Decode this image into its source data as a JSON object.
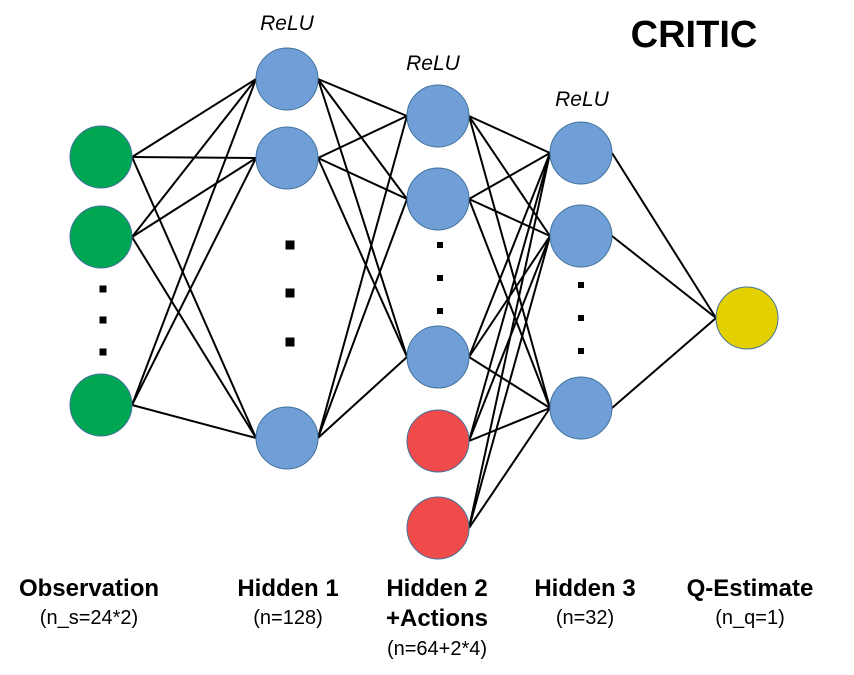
{
  "title": "CRITIC",
  "colors": {
    "observation": "#00a651",
    "hidden": "#6f9fd6",
    "action": "#ef4b4b",
    "output": "#e2d000",
    "edge": "#000000"
  },
  "activation_label": "ReLU",
  "layers": [
    {
      "id": "observation",
      "name": "Observation",
      "size": "(n_s=24*2)"
    },
    {
      "id": "hidden1",
      "name": "Hidden 1",
      "size": "(n=128)",
      "activation": "ReLU"
    },
    {
      "id": "hidden2",
      "name": "Hidden 2",
      "name2": "+Actions",
      "size": "(n=64+2*4)",
      "activation": "ReLU"
    },
    {
      "id": "hidden3",
      "name": "Hidden 3",
      "size": "(n=32)",
      "activation": "ReLU"
    },
    {
      "id": "qestimate",
      "name": "Q-Estimate",
      "size": "(n_q=1)"
    }
  ]
}
